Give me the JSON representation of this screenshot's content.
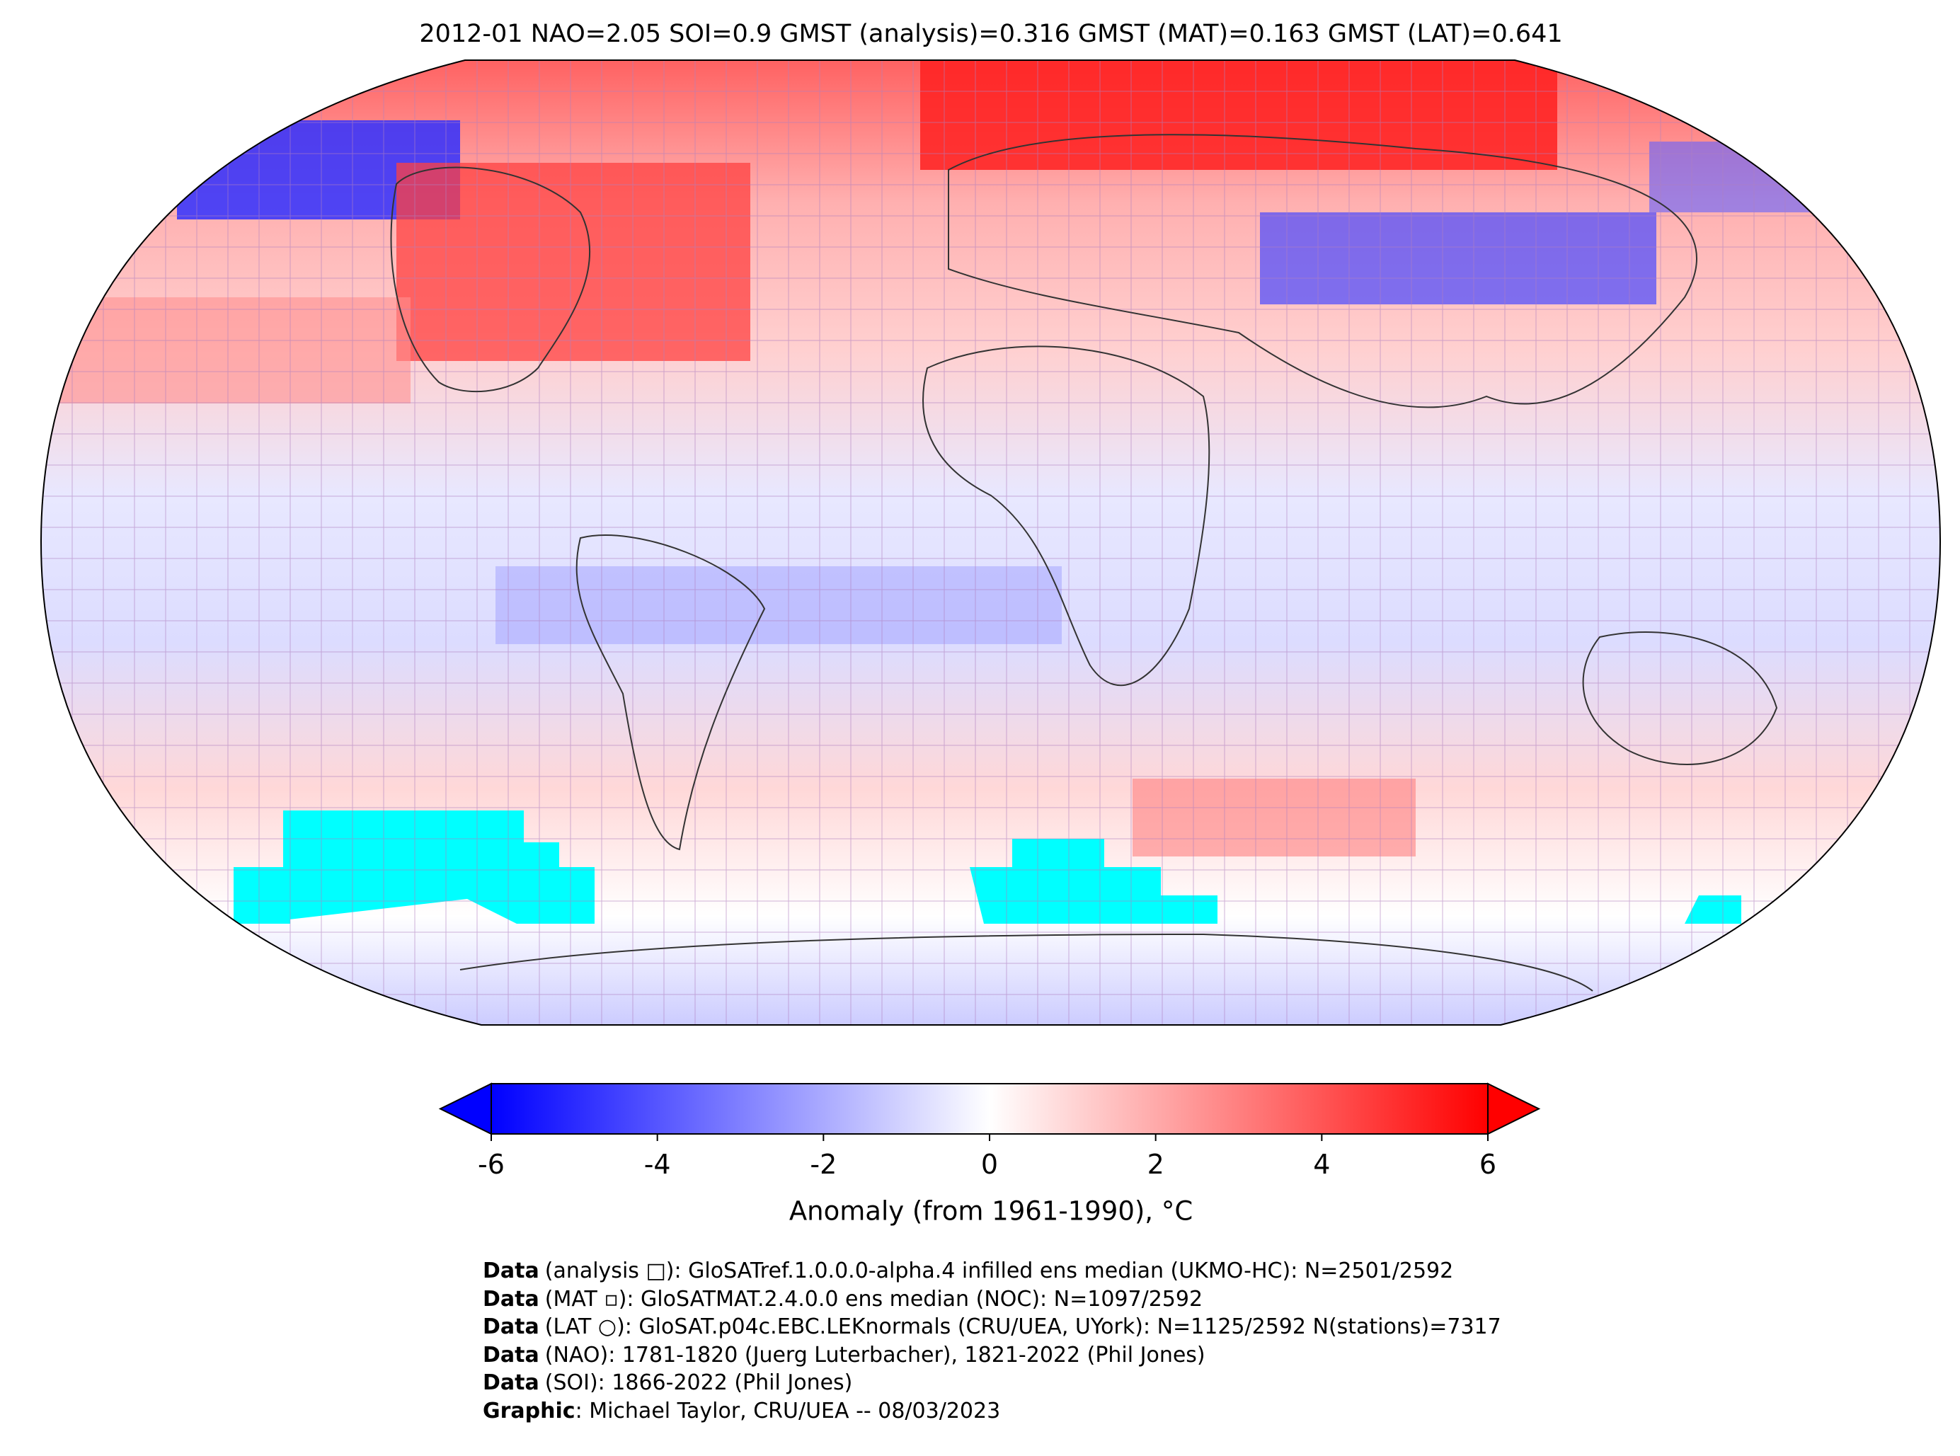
{
  "title": "2012-01 NAO=2.05 SOI=0.9 GMST (analysis)=0.316 GMST (MAT)=0.163 GMST (LAT)=0.641",
  "colorbar": {
    "label": "Anomaly (from 1961-1990), °C",
    "lim": [
      -6,
      6
    ],
    "ticks": [
      -6,
      -4,
      -2,
      0,
      2,
      4,
      6
    ],
    "colors": [
      "#0000ff",
      "#ffffff",
      "#ff0000"
    ]
  },
  "credits": [
    {
      "label": "Data",
      "text": "(analysis □): GloSATref.1.0.0.0-alpha.4 infilled ens median (UKMO-HC): N=2501/2592"
    },
    {
      "label": "Data",
      "text": "(MAT ▫): GloSATMAT.2.4.0.0 ens median (NOC): N=1097/2592"
    },
    {
      "label": "Data",
      "text": "(LAT ○): GloSAT.p04c.EBC.LEKnormals (CRU/UEA, UYork): N=1125/2592 N(stations)=7317"
    },
    {
      "label": "Data",
      "text": "(NAO): 1781-1820 (Juerg Luterbacher), 1821-2022 (Phil Jones)"
    },
    {
      "label": "Data",
      "text": "(SOI): 1866-2022 (Phil Jones)"
    },
    {
      "label": "Graphic",
      "text": ": Michael Taylor, CRU/UEA -- 08/03/2023"
    }
  ]
}
